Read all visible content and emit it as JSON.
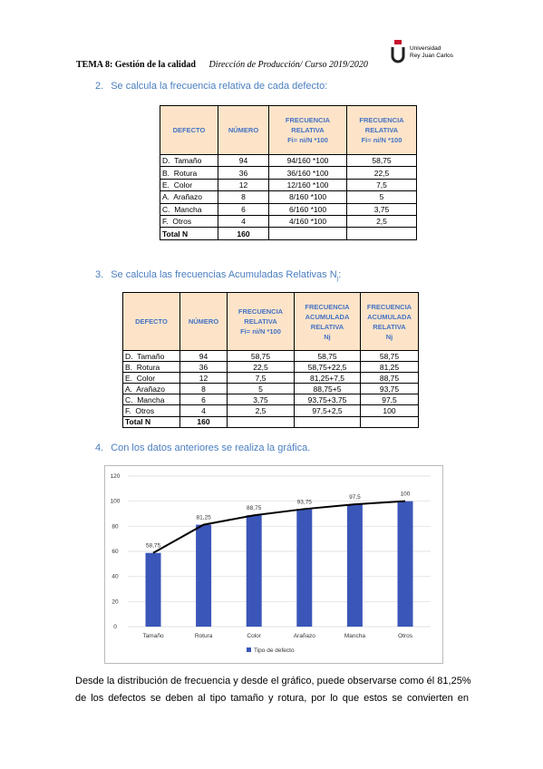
{
  "header": {
    "title": "TEMA 8:",
    "subject": "Gestión de la calidad",
    "course": "Dirección de Producción/ Curso 2019/2020",
    "logo": [
      "Universidad",
      "Rey Juan Carlos"
    ]
  },
  "steps": [
    {
      "number": "2.",
      "text": [
        "Se calcula la frecuencia relativa de cada defecto:"
      ]
    },
    {
      "number": "3.",
      "text": [
        "Se calcula las frecuencias Acumuladas Relativas N",
        "j",
        ":"
      ]
    },
    {
      "number": "4.",
      "text": [
        "Con los datos anteriores se realiza la gráfica."
      ]
    }
  ],
  "table1": {
    "headers": [
      [
        "DEFECTO"
      ],
      [
        "NÚMERO"
      ],
      [
        "FRECUENCIA",
        "RELATIVA",
        "Fi= ni/N *100"
      ],
      [
        "FRECUENCIA",
        "RELATIVA",
        "Fi= ni/N *100"
      ]
    ],
    "rows": [
      [
        "D.  Tamaño",
        "94",
        "94/160 *100",
        "58,75"
      ],
      [
        "B.  Rotura",
        "36",
        "36/160 *100",
        "22,5"
      ],
      [
        "E.  Color",
        "12",
        "12/160 *100",
        "7,5"
      ],
      [
        "A.  Arañazo",
        "8",
        "8/160 *100",
        "5"
      ],
      [
        "C.  Mancha",
        "6",
        "6/160 *100",
        "3,75"
      ],
      [
        "F.  Otros",
        "4",
        "4/160 *100",
        "2,5"
      ],
      [
        "Total N",
        "160",
        "",
        ""
      ]
    ]
  },
  "table2": {
    "headers": [
      [
        "DEFECTO"
      ],
      [
        "NÚMERO"
      ],
      [
        "FRECUENCIA",
        "RELATIVA",
        "Fi= ni/N *100"
      ],
      [
        "FRECUENCIA",
        "ACUMULADA",
        "RELATIVA",
        "Nj"
      ],
      [
        "FRECUENCIA",
        "ACUMULADA",
        "RELATIVA",
        "Nj"
      ]
    ],
    "rows": [
      [
        "D.  Tamaño",
        "94",
        "58,75",
        "58,75",
        "58,75"
      ],
      [
        "B.  Rotura",
        "36",
        "22,5",
        "58,75+22,5",
        "81,25"
      ],
      [
        "E.  Color",
        "12",
        "7,5",
        "81,25+7,5",
        "88,75"
      ],
      [
        "A.  Arañazo",
        "8",
        "5",
        "88,75+5",
        "93,75"
      ],
      [
        "C.  Mancha",
        "6",
        "3,75",
        "93,75+3,75",
        "97,5"
      ],
      [
        "F.  Otros",
        "4",
        "2,5",
        "97,5+2,5",
        "100"
      ],
      [
        "Total N",
        "160",
        "",
        "",
        ""
      ]
    ]
  },
  "chart": {
    "type": "bar",
    "categories": [
      "Tamaño",
      "Rotura",
      "Color",
      "Arañazo",
      "Mancha",
      "Otros"
    ],
    "values": [
      58.75,
      81.25,
      88.75,
      93.75,
      97.5,
      100
    ],
    "value_labels": [
      "58,75",
      "81,25",
      "88,75",
      "93,75",
      "97,5",
      "100"
    ],
    "color": "#3a56b8",
    "line_color": "#000000",
    "ylim": [
      0,
      120
    ],
    "yticks": [
      0,
      20,
      40,
      60,
      80,
      100,
      120
    ],
    "grid": true,
    "legend": "Tipo de defecto"
  },
  "paragraph": [
    "Desde la distribución de frecuencia y desde el gráfico, puede observarse como él 81,25%",
    "de los defectos se deben al tipo tamaño y rotura, por lo que estos se convierten en"
  ]
}
